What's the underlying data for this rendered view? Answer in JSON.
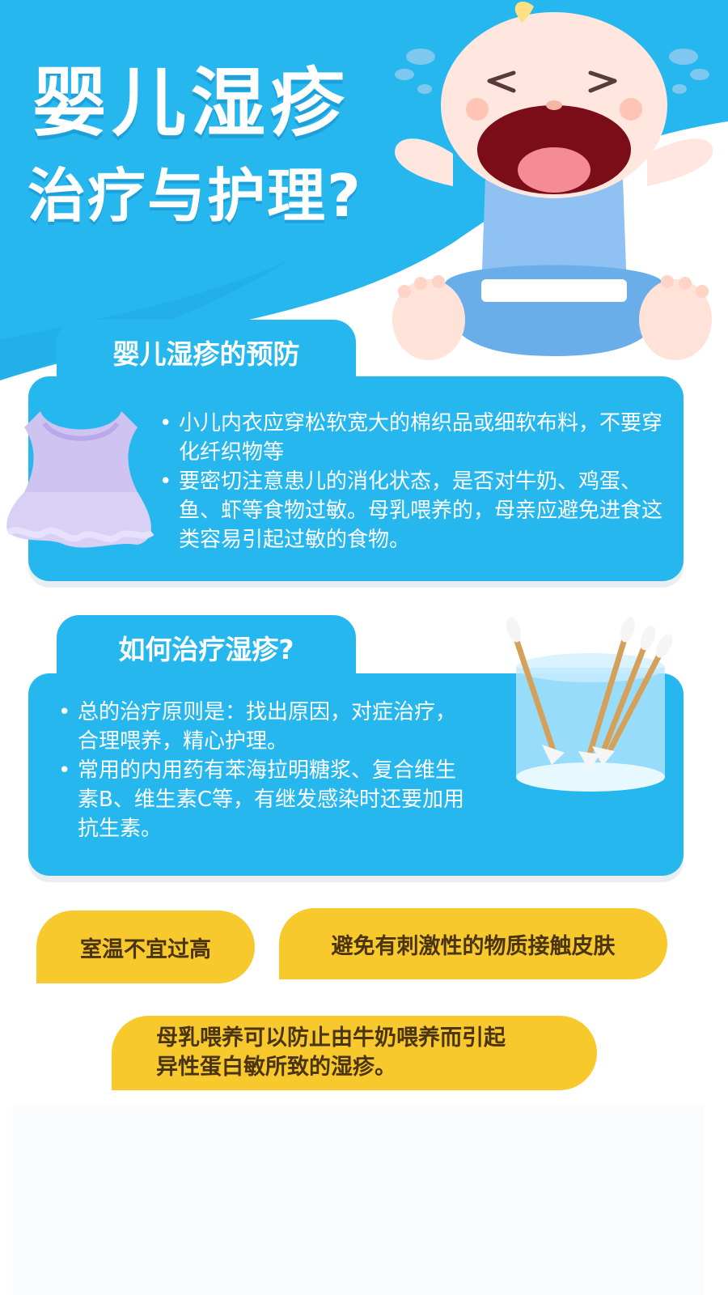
{
  "header": {
    "title_line1": "婴儿湿疹",
    "title_line2": "治疗与护理?"
  },
  "prevention": {
    "tab_label": "婴儿湿疹的预防",
    "items": [
      "小儿内衣应穿松软宽大的棉织品或细软布料，不要穿化纤织物等",
      "要密切注意患儿的消化状态，是否对牛奶、鸡蛋、鱼、虾等食物过敏。母乳喂养的，母亲应避免进食这类容易引起过敏的食物。"
    ]
  },
  "treatment": {
    "tab_label": "如何治疗湿疹?",
    "items": [
      "总的治疗原则是：找出原因，对症治疗，合理喂养，精心护理。",
      "常用的内用药有苯海拉明糖浆、复合维生素B、维生素C等，有继发感染时还要加用抗生素。"
    ]
  },
  "tips": {
    "tip1": "室温不宜过高",
    "tip2": "避免有刺激性的物质接触皮肤",
    "tip3_line1": "母乳喂养可以防止由牛奶喂养而引起",
    "tip3_line2": "异性蛋白敏所致的湿疹。"
  },
  "icons": {
    "baby": "crying-baby-illustration",
    "dress": "baby-dress-illustration",
    "swabs": "cotton-swabs-in-glass-illustration"
  },
  "colors": {
    "primary_blue": "#27b7ef",
    "accent_yellow": "#f8c92d",
    "pill_text": "#4b3410",
    "white": "#ffffff"
  }
}
